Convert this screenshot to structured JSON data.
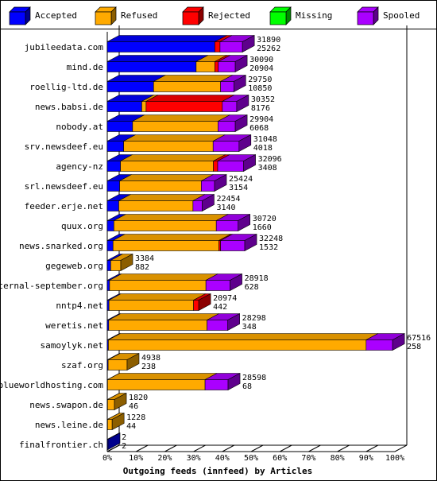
{
  "chart_data": {
    "type": "bar",
    "orientation": "horizontal",
    "stacked": true,
    "style": "3d",
    "title": "",
    "xlabel": "Outgoing feeds (innfeed) by Articles",
    "ylabel": "",
    "xlim": [
      0,
      100
    ],
    "x_unit": "%",
    "x_ticks": [
      "0%",
      "10%",
      "20%",
      "30%",
      "40%",
      "50%",
      "60%",
      "70%",
      "80%",
      "90%",
      "100%"
    ],
    "legend_position": "top",
    "grid": false,
    "series": [
      {
        "name": "Accepted",
        "color": "#0000ff"
      },
      {
        "name": "Refused",
        "color": "#ffaa00"
      },
      {
        "name": "Rejected",
        "color": "#ff0000"
      },
      {
        "name": "Missing",
        "color": "#00ff00"
      },
      {
        "name": "Spooled",
        "color": "#aa00ff"
      }
    ],
    "categories": [
      {
        "name": "jubileedata.com",
        "total": 31890,
        "accepted": 25262,
        "segments": [
          37.4,
          0,
          1.8,
          0,
          7.8
        ]
      },
      {
        "name": "mind.de",
        "total": 30090,
        "accepted": 20904,
        "segments": [
          30.9,
          6.5,
          1.2,
          0,
          5.9
        ]
      },
      {
        "name": "roellig-ltd.de",
        "total": 29750,
        "accepted": 10850,
        "segments": [
          16.1,
          23.3,
          0,
          0,
          4.6
        ]
      },
      {
        "name": "news.babsi.de",
        "total": 30352,
        "accepted": 8176,
        "segments": [
          12.0,
          1.5,
          26.5,
          0,
          5.0
        ]
      },
      {
        "name": "nobody.at",
        "total": 29904,
        "accepted": 6068,
        "segments": [
          8.8,
          29.7,
          0,
          0,
          6.0
        ]
      },
      {
        "name": "srv.newsdeef.eu",
        "total": 31048,
        "accepted": 4018,
        "segments": [
          5.7,
          31.1,
          0,
          0,
          9.0
        ]
      },
      {
        "name": "agency-nz",
        "total": 32096,
        "accepted": 3408,
        "segments": [
          4.6,
          32.3,
          1.5,
          0,
          9.0
        ]
      },
      {
        "name": "srl.newsdeef.eu",
        "total": 25424,
        "accepted": 3154,
        "segments": [
          4.3,
          28.4,
          0,
          0,
          4.6
        ]
      },
      {
        "name": "feeder.erje.net",
        "total": 22454,
        "accepted": 3140,
        "segments": [
          4.0,
          25.8,
          0,
          0,
          3.2
        ]
      },
      {
        "name": "quux.org",
        "total": 30720,
        "accepted": 1660,
        "segments": [
          2.3,
          35.6,
          0,
          0,
          7.6
        ]
      },
      {
        "name": "news.snarked.org",
        "total": 32248,
        "accepted": 1532,
        "segments": [
          2.0,
          36.8,
          0.6,
          0,
          8.4
        ]
      },
      {
        "name": "gegeweb.org",
        "total": 3384,
        "accepted": 882,
        "segments": [
          1.2,
          3.5,
          0,
          0,
          0
        ]
      },
      {
        "name": "eternal-september.org",
        "total": 28918,
        "accepted": 628,
        "segments": [
          0.8,
          33.5,
          0,
          0,
          8.4
        ]
      },
      {
        "name": "nntp4.net",
        "total": 20974,
        "accepted": 442,
        "segments": [
          0.6,
          29.4,
          1.8,
          0,
          0
        ]
      },
      {
        "name": "weretis.net",
        "total": 28298,
        "accepted": 348,
        "segments": [
          0.5,
          34.2,
          0,
          0,
          7.2
        ]
      },
      {
        "name": "samoylyk.net",
        "total": 67516,
        "accepted": 258,
        "segments": [
          0.4,
          89.6,
          0,
          0,
          9.2
        ]
      },
      {
        "name": "szaf.org",
        "total": 4938,
        "accepted": 238,
        "segments": [
          0.3,
          6.6,
          0,
          0,
          0
        ]
      },
      {
        "name": "blueworldhosting.com",
        "total": 28598,
        "accepted": 68,
        "segments": [
          0.1,
          33.9,
          0,
          0,
          8.0
        ]
      },
      {
        "name": "news.swapon.de",
        "total": 1820,
        "accepted": 46,
        "segments": [
          0.1,
          2.4,
          0,
          0,
          0
        ]
      },
      {
        "name": "news.leine.de",
        "total": 1228,
        "accepted": 44,
        "segments": [
          0.1,
          1.6,
          0,
          0,
          0
        ]
      },
      {
        "name": "finalfrontier.ch",
        "total": 2,
        "accepted": 2,
        "segments": [
          0.03,
          0,
          0,
          0,
          0
        ]
      }
    ]
  }
}
